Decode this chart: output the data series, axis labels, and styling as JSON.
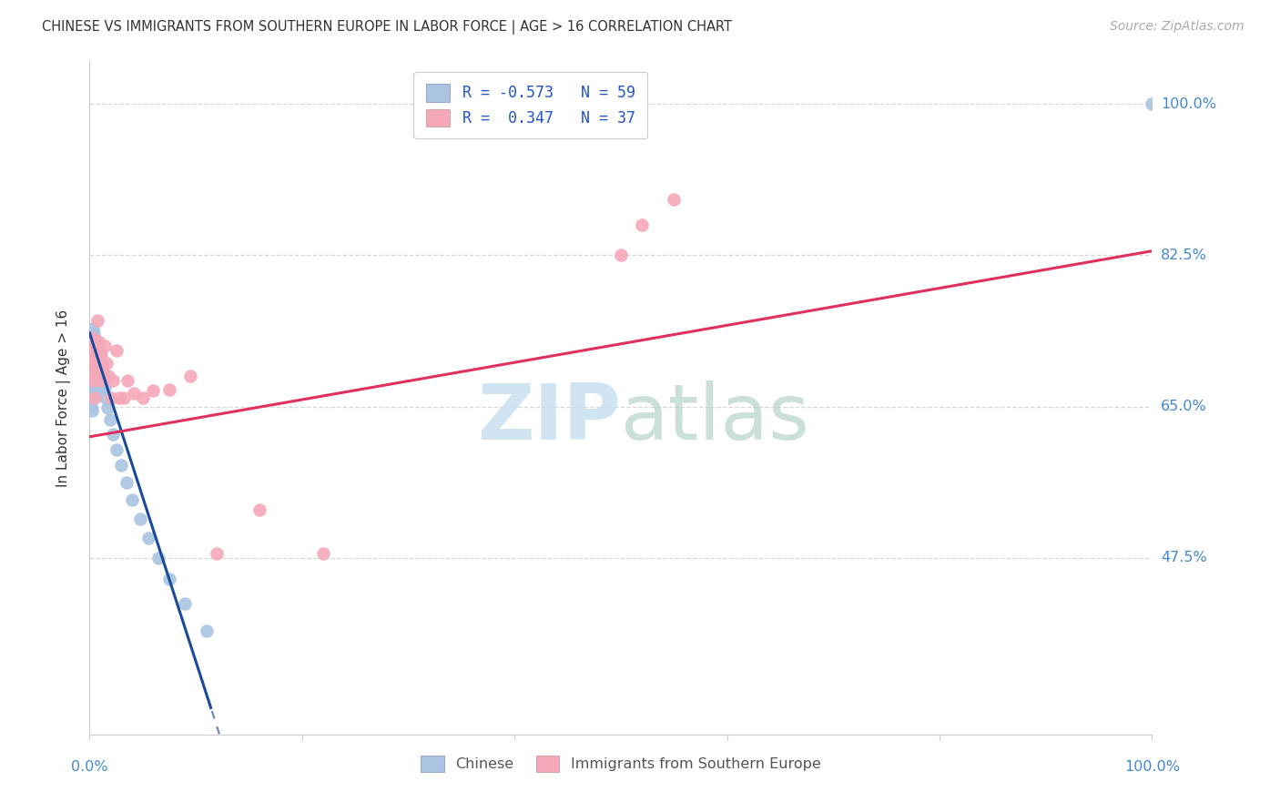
{
  "title": "CHINESE VS IMMIGRANTS FROM SOUTHERN EUROPE IN LABOR FORCE | AGE > 16 CORRELATION CHART",
  "source": "Source: ZipAtlas.com",
  "ylabel": "In Labor Force | Age > 16",
  "xlim": [
    0.0,
    1.0
  ],
  "ylim": [
    0.27,
    1.05
  ],
  "ytick_values": [
    0.475,
    0.65,
    0.825,
    1.0
  ],
  "ytick_labels": [
    "47.5%",
    "65.0%",
    "82.5%",
    "100.0%"
  ],
  "chinese_color": "#aac4e2",
  "southern_europe_color": "#f5a8b8",
  "blue_line_color": "#1a4a9a",
  "pink_line_color": "#e03060",
  "background_color": "#ffffff",
  "grid_color": "#d8d8d8",
  "watermark_zip_color": "#c8e0f0",
  "watermark_atlas_color": "#b0d0c0",
  "label_color": "#4488cc",
  "title_color": "#333333",
  "source_color": "#aaaaaa",
  "legend1_label": "R = -0.573   N = 59",
  "legend2_label": "R =  0.347   N = 37",
  "bottom_legend1": "Chinese",
  "bottom_legend2": "Immigrants from Southern Europe",
  "blue_line_intercept": 0.735,
  "blue_line_slope": -3.8,
  "blue_line_solid_xmax": 0.115,
  "blue_line_dashed_xmax": 0.22,
  "pink_line_intercept": 0.615,
  "pink_line_slope": 0.215,
  "chinese_x": [
    0.001,
    0.001,
    0.001,
    0.001,
    0.001,
    0.002,
    0.002,
    0.002,
    0.002,
    0.002,
    0.002,
    0.003,
    0.003,
    0.003,
    0.003,
    0.003,
    0.004,
    0.004,
    0.004,
    0.004,
    0.004,
    0.005,
    0.005,
    0.005,
    0.005,
    0.006,
    0.006,
    0.006,
    0.006,
    0.007,
    0.007,
    0.007,
    0.008,
    0.008,
    0.008,
    0.009,
    0.009,
    0.01,
    0.01,
    0.01,
    0.011,
    0.012,
    0.013,
    0.014,
    0.015,
    0.017,
    0.019,
    0.022,
    0.025,
    0.03,
    0.035,
    0.04,
    0.048,
    0.055,
    0.065,
    0.075,
    0.09,
    0.11,
    1.0
  ],
  "chinese_y": [
    0.72,
    0.7,
    0.685,
    0.67,
    0.65,
    0.73,
    0.715,
    0.7,
    0.685,
    0.665,
    0.645,
    0.74,
    0.72,
    0.705,
    0.688,
    0.668,
    0.735,
    0.718,
    0.7,
    0.683,
    0.663,
    0.728,
    0.712,
    0.695,
    0.675,
    0.72,
    0.705,
    0.688,
    0.668,
    0.718,
    0.7,
    0.68,
    0.715,
    0.698,
    0.678,
    0.71,
    0.69,
    0.705,
    0.688,
    0.668,
    0.7,
    0.692,
    0.682,
    0.672,
    0.66,
    0.648,
    0.635,
    0.618,
    0.6,
    0.582,
    0.562,
    0.542,
    0.52,
    0.498,
    0.475,
    0.45,
    0.422,
    0.39,
    1.0
  ],
  "se_x": [
    0.001,
    0.002,
    0.002,
    0.003,
    0.003,
    0.004,
    0.004,
    0.005,
    0.005,
    0.006,
    0.007,
    0.007,
    0.008,
    0.009,
    0.01,
    0.011,
    0.012,
    0.014,
    0.016,
    0.018,
    0.02,
    0.022,
    0.025,
    0.028,
    0.032,
    0.036,
    0.042,
    0.05,
    0.06,
    0.075,
    0.095,
    0.12,
    0.16,
    0.22,
    0.5,
    0.52,
    0.55
  ],
  "se_y": [
    0.72,
    0.7,
    0.73,
    0.68,
    0.715,
    0.69,
    0.725,
    0.7,
    0.66,
    0.71,
    0.695,
    0.75,
    0.725,
    0.705,
    0.68,
    0.71,
    0.695,
    0.72,
    0.7,
    0.685,
    0.66,
    0.68,
    0.715,
    0.66,
    0.66,
    0.68,
    0.665,
    0.66,
    0.668,
    0.67,
    0.685,
    0.48,
    0.53,
    0.48,
    0.825,
    0.86,
    0.89
  ]
}
